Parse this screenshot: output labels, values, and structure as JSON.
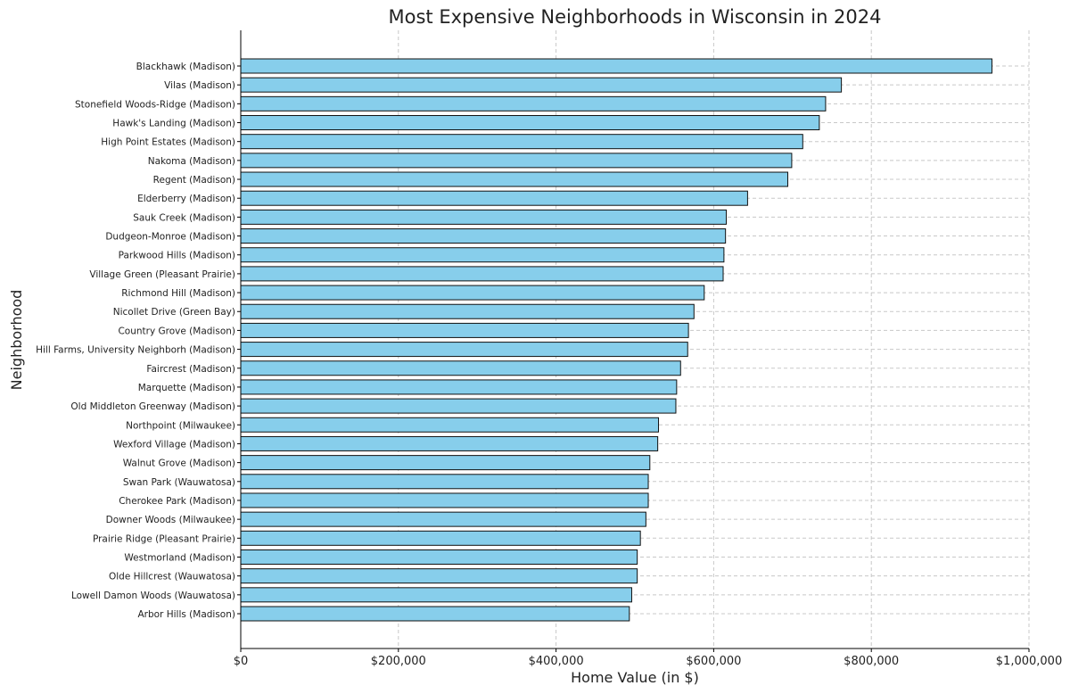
{
  "chart_data": {
    "type": "bar",
    "orientation": "horizontal",
    "title": "Most Expensive Neighborhoods in Wisconsin in 2024",
    "xlabel": "Home Value (in $)",
    "ylabel": "Neighborhood",
    "xlim": [
      0,
      1000000
    ],
    "xticks": [
      0,
      200000,
      400000,
      600000,
      800000,
      1000000
    ],
    "xtick_labels": [
      "$0",
      "$200,000",
      "$400,000",
      "$600,000",
      "$800,000",
      "$1,000,000"
    ],
    "grid": true,
    "bar_color": "#87ceeb",
    "categories": [
      "Blackhawk (Madison)",
      "Vilas (Madison)",
      "Stonefield Woods-Ridge (Madison)",
      "Hawk's Landing (Madison)",
      "High Point Estates (Madison)",
      "Nakoma (Madison)",
      "Regent (Madison)",
      "Elderberry (Madison)",
      "Sauk Creek (Madison)",
      "Dudgeon-Monroe (Madison)",
      "Parkwood Hills (Madison)",
      "Village Green (Pleasant Prairie)",
      "Richmond Hill (Madison)",
      "Nicollet Drive (Green Bay)",
      "Country Grove (Madison)",
      "Hill Farms, University Neighborh (Madison)",
      "Faircrest (Madison)",
      "Marquette (Madison)",
      "Old Middleton Greenway (Madison)",
      "Northpoint (Milwaukee)",
      "Wexford Village (Madison)",
      "Walnut Grove (Madison)",
      "Swan Park (Wauwatosa)",
      "Cherokee Park (Madison)",
      "Downer Woods (Milwaukee)",
      "Prairie Ridge (Pleasant Prairie)",
      "Westmorland (Madison)",
      "Olde Hillcrest (Wauwatosa)",
      "Lowell Damon Woods (Wauwatosa)",
      "Arbor Hills (Madison)"
    ],
    "values": [
      953000,
      762000,
      742000,
      734000,
      713000,
      699000,
      694000,
      643000,
      616000,
      615000,
      613000,
      612000,
      588000,
      575000,
      568000,
      567000,
      558000,
      553000,
      552000,
      530000,
      529000,
      519000,
      517000,
      517000,
      514000,
      507000,
      503000,
      503000,
      496000,
      493000
    ]
  }
}
